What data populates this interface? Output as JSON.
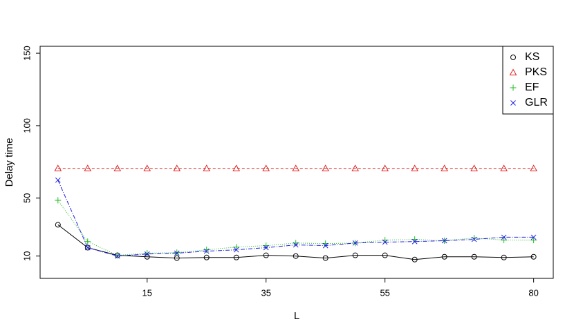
{
  "chart_data": {
    "type": "line",
    "x_label": "L",
    "y_label": "Delay time",
    "x": [
      0,
      5,
      10,
      15,
      20,
      25,
      30,
      35,
      40,
      45,
      50,
      55,
      60,
      65,
      70,
      75,
      80
    ],
    "xlim": [
      -3.0,
      83.3
    ],
    "xticks": [
      15,
      35,
      55,
      80
    ],
    "ylim": [
      -5.4,
      154.8
    ],
    "yticks": [
      10,
      50,
      100,
      150
    ],
    "legend": "top-right",
    "series": [
      {
        "name": "KS",
        "color": "#000000",
        "marker": "circle",
        "dash": "none",
        "values": [
          31.6,
          15.8,
          10.5,
          9.5,
          8.6,
          9,
          9,
          10.5,
          10,
          8.6,
          10.5,
          10.5,
          7.6,
          9.5,
          9.5,
          9,
          9.5
        ]
      },
      {
        "name": "PKS",
        "color": "#df2020",
        "marker": "triangle",
        "dash": "4 3",
        "values": [
          70.5,
          70.5,
          70.5,
          70.5,
          70.5,
          70.5,
          70.5,
          70.5,
          70.5,
          70.5,
          70.5,
          70.5,
          70.5,
          70.5,
          70.5,
          70.5,
          70.5
        ]
      },
      {
        "name": "EF",
        "color": "#22bb22",
        "marker": "plus",
        "dash": "1 2",
        "values": [
          48.5,
          20,
          10.5,
          12,
          12.4,
          14.3,
          16.2,
          17.2,
          19,
          18.6,
          19,
          21,
          21.5,
          20.6,
          22.5,
          21,
          21
        ]
      },
      {
        "name": "GLR",
        "color": "#1f1fdf",
        "marker": "cross",
        "dash": "6 2 1 2",
        "values": [
          62.4,
          15.8,
          10,
          11.4,
          12,
          13.4,
          14.3,
          15.8,
          17.7,
          17.2,
          19,
          19.6,
          20,
          20.6,
          21.5,
          23,
          23
        ]
      }
    ]
  }
}
